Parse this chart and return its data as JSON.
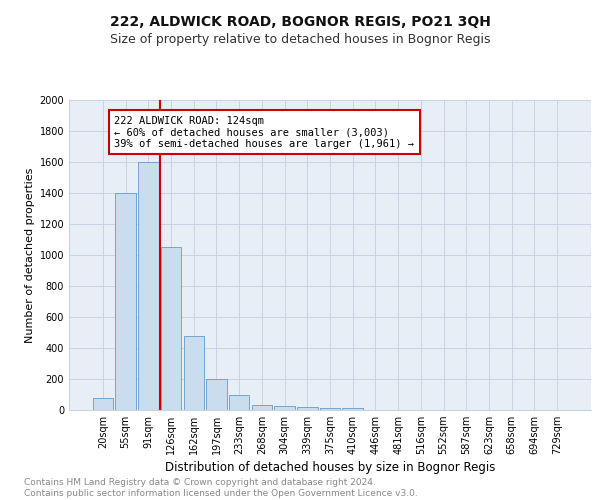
{
  "title": "222, ALDWICK ROAD, BOGNOR REGIS, PO21 3QH",
  "subtitle": "Size of property relative to detached houses in Bognor Regis",
  "xlabel": "Distribution of detached houses by size in Bognor Regis",
  "ylabel": "Number of detached properties",
  "categories": [
    "20sqm",
    "55sqm",
    "91sqm",
    "126sqm",
    "162sqm",
    "197sqm",
    "233sqm",
    "268sqm",
    "304sqm",
    "339sqm",
    "375sqm",
    "410sqm",
    "446sqm",
    "481sqm",
    "516sqm",
    "552sqm",
    "587sqm",
    "623sqm",
    "658sqm",
    "694sqm",
    "729sqm"
  ],
  "values": [
    80,
    1400,
    1600,
    1050,
    480,
    200,
    100,
    35,
    25,
    20,
    15,
    15,
    0,
    0,
    0,
    0,
    0,
    0,
    0,
    0,
    0
  ],
  "bar_color": "#c9ddef",
  "bar_edge_color": "#6699cc",
  "red_line_index": 3,
  "annotation_line1": "222 ALDWICK ROAD: 124sqm",
  "annotation_line2": "← 60% of detached houses are smaller (3,003)",
  "annotation_line3": "39% of semi-detached houses are larger (1,961) →",
  "annotation_box_color": "#ffffff",
  "annotation_box_edge": "#cc0000",
  "ylim": [
    0,
    2000
  ],
  "yticks": [
    0,
    200,
    400,
    600,
    800,
    1000,
    1200,
    1400,
    1600,
    1800,
    2000
  ],
  "grid_color": "#c8d4e3",
  "bg_color": "#e8eef5",
  "footer_line1": "Contains HM Land Registry data © Crown copyright and database right 2024.",
  "footer_line2": "Contains public sector information licensed under the Open Government Licence v3.0.",
  "title_fontsize": 10,
  "subtitle_fontsize": 9,
  "xlabel_fontsize": 8.5,
  "ylabel_fontsize": 8,
  "tick_fontsize": 7,
  "footer_fontsize": 6.5,
  "annot_fontsize": 7.5
}
